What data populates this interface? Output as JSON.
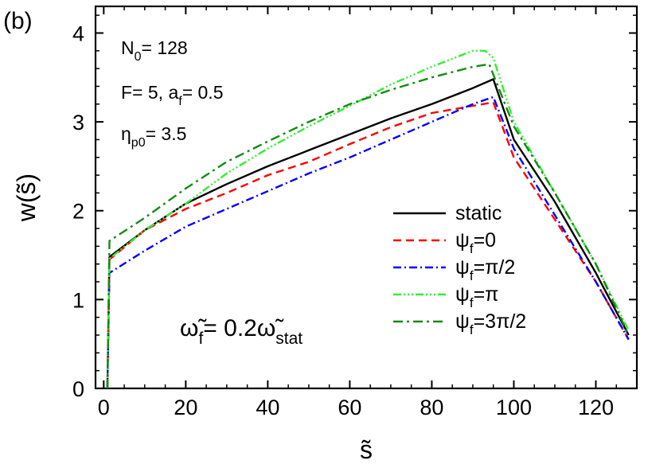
{
  "chart_data": {
    "type": "line",
    "panel_label": "(b)",
    "xlabel": "s̃",
    "ylabel": "w(s̃)",
    "xlim": [
      -2,
      130
    ],
    "ylim": [
      0,
      4.3
    ],
    "xticks": [
      0,
      20,
      40,
      60,
      80,
      100,
      120
    ],
    "yticks": [
      0,
      1,
      2,
      3,
      4
    ],
    "xtick_labels": [
      "0",
      "20",
      "40",
      "60",
      "80",
      "100",
      "120"
    ],
    "ytick_labels": [
      "0",
      "1",
      "2",
      "3",
      "4"
    ],
    "annotations": {
      "n0": "N",
      "n0_sub": "0",
      "n0_val": "= 128",
      "f_text": "F= 5, a",
      "f_sub": "f",
      "f_val": "= 0.5",
      "eta": "η",
      "eta_sub": "p0",
      "eta_val": "= 3.5",
      "omega_main": "ω̃",
      "omega_sub": "f",
      "omega_mid": "= 0.2ω̃",
      "omega_sub2": "stat"
    },
    "legend_position": "center-right",
    "series": [
      {
        "name": "static",
        "label_main": "static",
        "label_sub": "",
        "label_tail": "",
        "color": "#000000",
        "dash": "",
        "x": [
          0.9,
          1.4,
          10,
          20,
          30,
          40,
          50,
          60,
          70,
          80,
          90,
          95,
          100,
          110,
          120,
          128
        ],
        "y": [
          0,
          1.48,
          1.78,
          2.08,
          2.3,
          2.5,
          2.68,
          2.86,
          3.04,
          3.2,
          3.38,
          3.48,
          2.8,
          2.1,
          1.3,
          0.6
        ]
      },
      {
        "name": "ψf=0",
        "label_main": "ψ",
        "label_sub": "f",
        "label_tail": "=0",
        "color": "#ff0000",
        "dash": "10,6",
        "x": [
          0.9,
          1.4,
          10,
          20,
          30,
          40,
          50,
          60,
          70,
          80,
          90,
          95,
          100,
          110,
          120,
          128
        ],
        "y": [
          0,
          1.45,
          1.78,
          2.02,
          2.2,
          2.4,
          2.55,
          2.75,
          2.94,
          3.1,
          3.18,
          3.22,
          2.6,
          1.9,
          1.2,
          0.55
        ]
      },
      {
        "name": "ψf=π/2",
        "label_main": "ψ",
        "label_sub": "f",
        "label_tail": "=π/2",
        "color": "#0000ff",
        "dash": "10,4,2,4",
        "x": [
          0.9,
          1.4,
          10,
          20,
          30,
          40,
          50,
          60,
          70,
          80,
          90,
          95,
          100,
          110,
          120,
          128
        ],
        "y": [
          0,
          1.3,
          1.55,
          1.82,
          2.02,
          2.22,
          2.42,
          2.6,
          2.8,
          3.0,
          3.2,
          3.28,
          2.7,
          1.95,
          1.2,
          0.55
        ]
      },
      {
        "name": "ψf=π",
        "label_main": "ψ",
        "label_sub": "f",
        "label_tail": "=π",
        "color": "#33ee33",
        "dash": "10,3,2,3,2,3,2,3",
        "x": [
          0.9,
          1.4,
          10,
          20,
          30,
          40,
          50,
          60,
          70,
          80,
          90,
          93,
          95,
          100,
          110,
          120,
          128
        ],
        "y": [
          0,
          1.46,
          1.78,
          2.08,
          2.42,
          2.7,
          2.95,
          3.18,
          3.42,
          3.62,
          3.8,
          3.8,
          3.72,
          3.0,
          2.2,
          1.4,
          0.65
        ]
      },
      {
        "name": "ψf=3π/2",
        "label_main": "ψ",
        "label_sub": "f",
        "label_tail": "=3π/2",
        "color": "#138b13",
        "dash": "12,5,3,5",
        "x": [
          0.9,
          1.4,
          10,
          20,
          30,
          40,
          50,
          60,
          70,
          80,
          90,
          94,
          100,
          110,
          120,
          128
        ],
        "y": [
          0,
          1.66,
          1.92,
          2.25,
          2.55,
          2.78,
          3.0,
          3.2,
          3.36,
          3.5,
          3.62,
          3.65,
          2.95,
          2.2,
          1.4,
          0.6
        ]
      }
    ]
  }
}
